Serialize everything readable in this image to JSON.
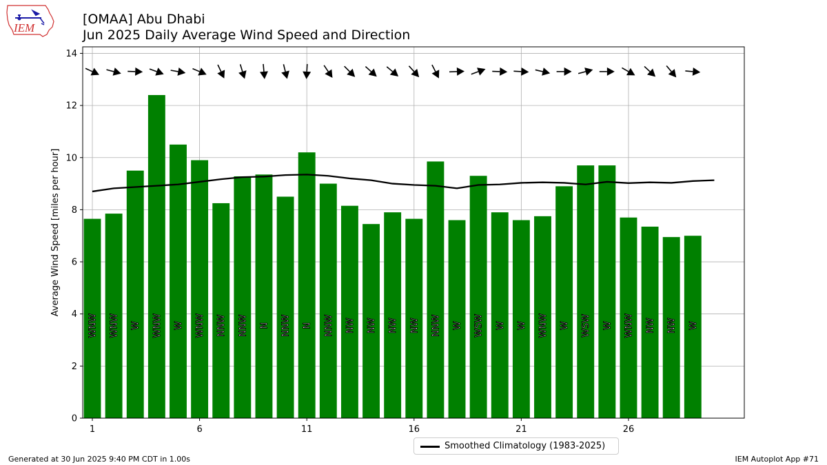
{
  "header": {
    "title_line1": "[OMAA] Abu Dhabi",
    "title_line2": "Jun 2025 Daily Average Wind Speed and Direction",
    "logo_text": "IEM"
  },
  "footer": {
    "generated": "Generated at 30 Jun 2025 9:40 PM CDT in 1.00s",
    "app": "IEM Autoplot App #71"
  },
  "colors": {
    "bar": "#008000",
    "climatology": "#000000",
    "grid": "#b0b0b0",
    "logo_red": "#d03030",
    "logo_blue": "#1a1aa6"
  },
  "chart_data": {
    "type": "bar",
    "ylabel": "Average Wind Speed [miles per hour]",
    "xlabel": "",
    "ylim": [
      0,
      14.25
    ],
    "xlim": [
      0.55,
      31.4
    ],
    "yticks": [
      0,
      2,
      4,
      6,
      8,
      10,
      12,
      14
    ],
    "xticks": [
      1,
      6,
      11,
      16,
      21,
      26
    ],
    "grid": true,
    "legend_position": "bottom-center",
    "days": [
      1,
      2,
      3,
      4,
      5,
      6,
      7,
      8,
      9,
      10,
      11,
      12,
      13,
      14,
      15,
      16,
      17,
      18,
      19,
      20,
      21,
      22,
      23,
      24,
      25,
      26,
      27,
      28,
      29
    ],
    "speed": [
      7.65,
      7.85,
      9.5,
      12.4,
      10.5,
      9.9,
      8.25,
      9.28,
      9.35,
      8.5,
      10.2,
      9.0,
      8.15,
      7.45,
      7.9,
      7.65,
      9.85,
      7.6,
      9.3,
      7.9,
      7.6,
      7.75,
      8.9,
      9.7,
      9.7,
      7.7,
      7.35,
      6.95,
      7.0
    ],
    "direction_labels": [
      "WNW",
      "WNW",
      "W",
      "WNW",
      "W",
      "WNW",
      "NNW",
      "NNW",
      "N",
      "NNW",
      "N",
      "NNW",
      "NW",
      "NW",
      "NW",
      "NW",
      "NNW",
      "W",
      "WSW",
      "W",
      "W",
      "WNW",
      "W",
      "WSW",
      "W",
      "WNW",
      "NW",
      "NW",
      "W"
    ],
    "direction_deg": [
      295,
      285,
      272,
      290,
      280,
      293,
      335,
      343,
      355,
      346,
      3,
      326,
      315,
      312,
      310,
      318,
      333,
      268,
      250,
      272,
      273,
      283,
      270,
      255,
      270,
      300,
      313,
      320,
      275
    ],
    "climatology": {
      "name": "Smoothed Climatology (1983-2025)",
      "days": [
        1,
        2,
        3,
        4,
        5,
        6,
        7,
        8,
        9,
        10,
        11,
        12,
        13,
        14,
        15,
        16,
        17,
        18,
        19,
        20,
        21,
        22,
        23,
        24,
        25,
        26,
        27,
        28,
        29,
        30
      ],
      "values": [
        8.7,
        8.82,
        8.87,
        8.92,
        8.97,
        9.07,
        9.17,
        9.25,
        9.27,
        9.33,
        9.35,
        9.3,
        9.2,
        9.13,
        9.0,
        8.95,
        8.92,
        8.82,
        8.95,
        8.97,
        9.03,
        9.05,
        9.03,
        8.97,
        9.07,
        9.02,
        9.05,
        9.03,
        9.1,
        9.13
      ]
    }
  }
}
